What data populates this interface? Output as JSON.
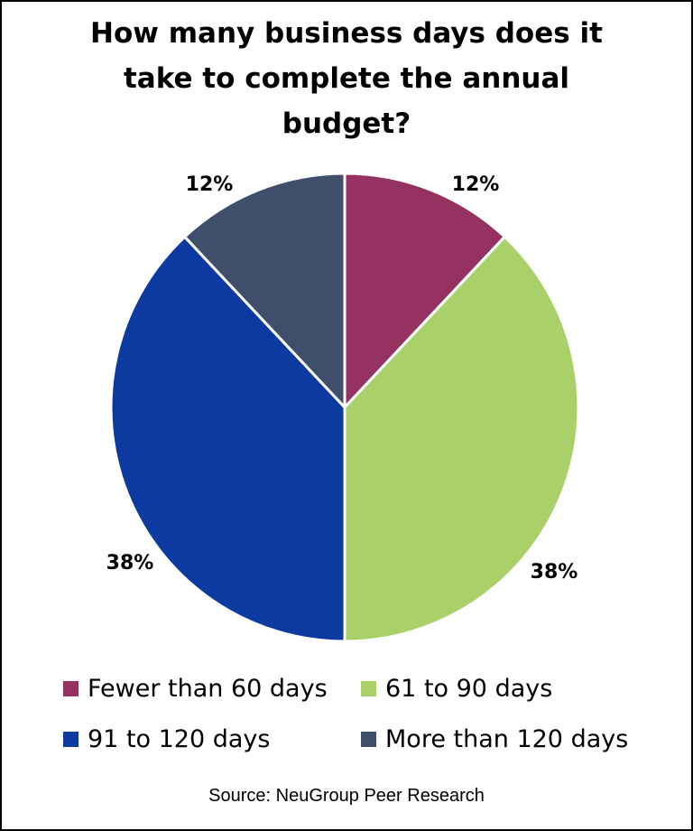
{
  "chart_data": {
    "type": "pie",
    "title": "How many business days does it\ntake to complete the annual\nbudget?",
    "slices": [
      {
        "label": "Fewer than 60 days",
        "value": 12,
        "display": "12%",
        "color": "#953262"
      },
      {
        "label": "61 to 90 days",
        "value": 38,
        "display": "38%",
        "color": "#aad169"
      },
      {
        "label": "91 to 120 days",
        "value": 38,
        "display": "38%",
        "color": "#0d3aa1"
      },
      {
        "label": "More than 120 days",
        "value": 12,
        "display": "12%",
        "color": "#3f4e6b"
      }
    ],
    "legend_position": "bottom"
  },
  "source": "Source: NeuGroup Peer Research"
}
